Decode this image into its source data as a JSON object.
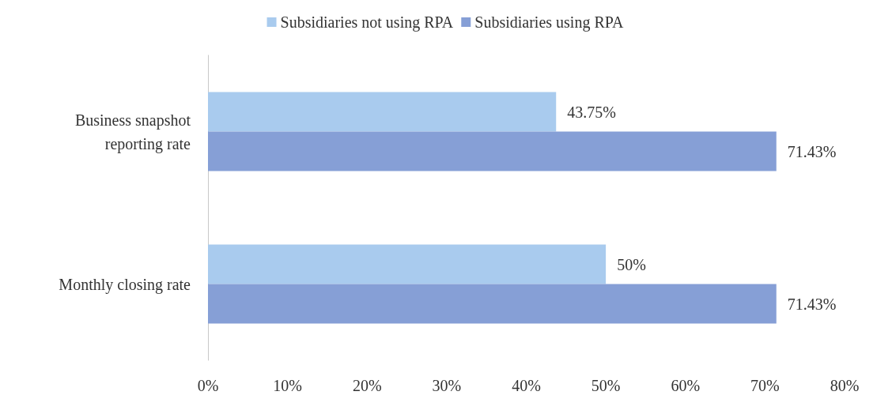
{
  "chart_data": {
    "type": "bar",
    "orientation": "horizontal",
    "categories": [
      "Business snapshot\nreporting rate",
      "Monthly closing rate"
    ],
    "series": [
      {
        "name": "Subsidiaries not using RPA",
        "color": "#a9cbee",
        "values": [
          43.75,
          50
        ],
        "value_labels": [
          "43.75%",
          "50%"
        ]
      },
      {
        "name": "Subsidiaries using RPA",
        "color": "#869fd6",
        "values": [
          71.43,
          71.43
        ],
        "value_labels": [
          "71.43%",
          "71.43%"
        ]
      }
    ],
    "xlim": [
      0,
      80
    ],
    "xticks": [
      {
        "value": 0,
        "label": "0%"
      },
      {
        "value": 10,
        "label": "10%"
      },
      {
        "value": 20,
        "label": "20%"
      },
      {
        "value": 30,
        "label": "30%"
      },
      {
        "value": 40,
        "label": "40%"
      },
      {
        "value": 50,
        "label": "50%"
      },
      {
        "value": 60,
        "label": "60%"
      },
      {
        "value": 70,
        "label": "70%"
      },
      {
        "value": 80,
        "label": "80%"
      }
    ],
    "grid": false,
    "legend": "top"
  }
}
